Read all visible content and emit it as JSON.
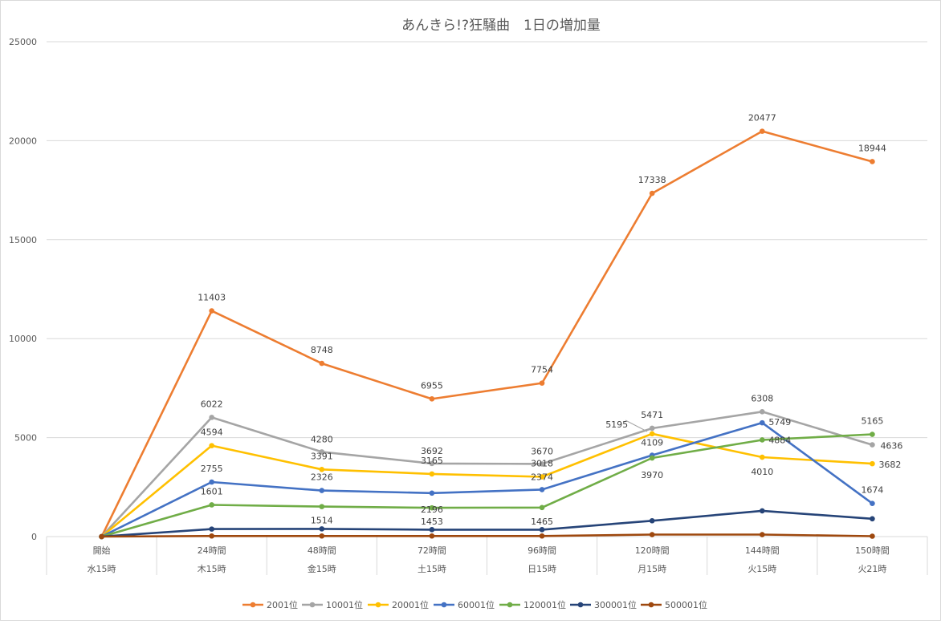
{
  "chart_data": {
    "type": "line",
    "title": "あんきら!?狂騒曲　1日の増加量",
    "xlabel": "",
    "ylabel": "",
    "ylim": [
      0,
      25000
    ],
    "yticks": [
      "0",
      "5000",
      "10000",
      "15000",
      "20000",
      "25000"
    ],
    "categories": [
      "開始",
      "24時間",
      "48時間",
      "72時間",
      "96時間",
      "120時間",
      "144時間",
      "150時間"
    ],
    "categories_sub": [
      "水15時",
      "木15時",
      "金15時",
      "土15時",
      "日15時",
      "月15時",
      "火15時",
      "火21時"
    ],
    "grid": true,
    "legend_position": "bottom",
    "series": [
      {
        "name": "2001位",
        "color": "#ED7D31",
        "values": [
          0,
          11403,
          8748,
          6955,
          7754,
          17338,
          20477,
          18944
        ],
        "labels": [
          null,
          "11403",
          "8748",
          "6955",
          "7754",
          "17338",
          "20477",
          "18944"
        ]
      },
      {
        "name": "10001位",
        "color": "#A5A5A5",
        "values": [
          0,
          6022,
          4280,
          3692,
          3670,
          5471,
          6308,
          4636
        ],
        "labels": [
          null,
          "6022",
          "4280",
          "3692",
          "3670",
          "5471",
          "6308",
          "4636"
        ]
      },
      {
        "name": "20001位",
        "color": "#FFC000",
        "values": [
          0,
          4594,
          3391,
          3165,
          3018,
          5195,
          4010,
          3682
        ],
        "labels": [
          null,
          "4594",
          "3391",
          "3165",
          "3018",
          "5195",
          "4010",
          "3682"
        ]
      },
      {
        "name": "60001位",
        "color": "#4472C4",
        "values": [
          0,
          2755,
          2326,
          2196,
          2374,
          4109,
          5749,
          1674
        ],
        "labels": [
          null,
          "2755",
          "2326",
          "2196",
          "2374",
          "4109",
          "5749",
          "1674"
        ]
      },
      {
        "name": "120001位",
        "color": "#70AD47",
        "values": [
          0,
          1601,
          1514,
          1453,
          1465,
          3970,
          4884,
          5165
        ],
        "labels": [
          null,
          "1601",
          "1514",
          "1453",
          "1465",
          "3970",
          "4884",
          "5165"
        ]
      },
      {
        "name": "300001位",
        "color": "#264478",
        "values": [
          0,
          380,
          390,
          350,
          350,
          800,
          1300,
          900
        ],
        "labels": [
          null,
          null,
          null,
          null,
          null,
          null,
          null,
          null
        ]
      },
      {
        "name": "500001位",
        "color": "#9E480E",
        "values": [
          0,
          30,
          30,
          30,
          30,
          100,
          100,
          20
        ],
        "labels": [
          null,
          null,
          null,
          null,
          null,
          null,
          null,
          null
        ]
      }
    ]
  }
}
